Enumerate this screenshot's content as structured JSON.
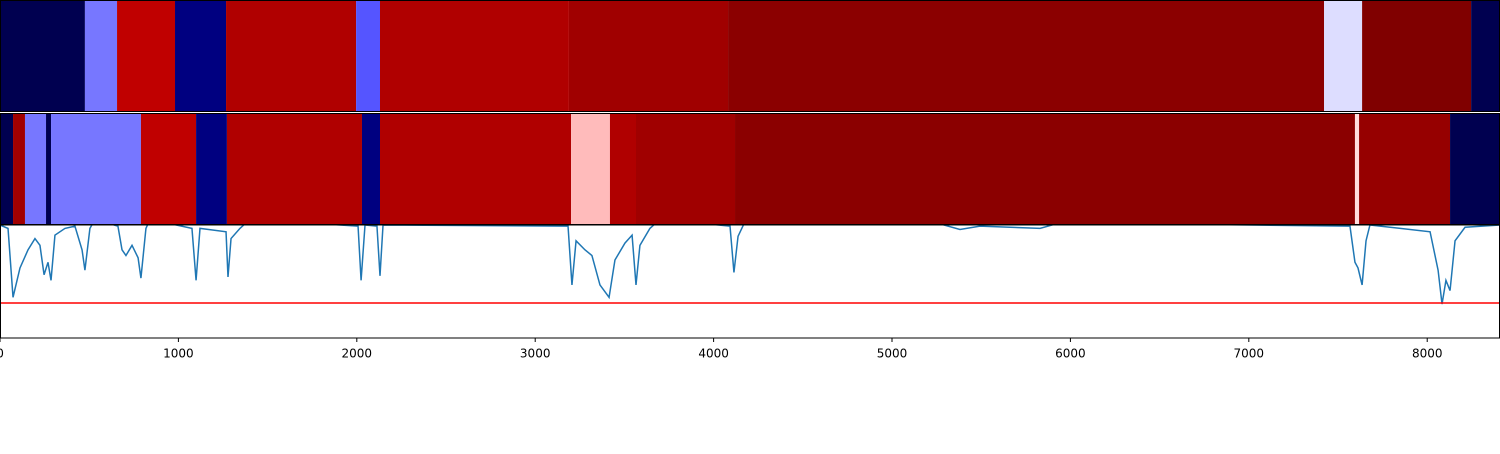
{
  "chart_data": {
    "type": "segments_line",
    "xlim": [
      0,
      8408
    ],
    "xticks": [
      0,
      1000,
      2000,
      3000,
      4000,
      5000,
      6000,
      7000,
      8000
    ],
    "strips": [
      {
        "edges": [
          0,
          476,
          656,
          981,
          1267,
          1996,
          2130,
          3189,
          4081,
          7422,
          7635,
          8246,
          8408
        ],
        "colors": [
          "#000050",
          "#7777ff",
          "#c00000",
          "#000080",
          "#b00000",
          "#5555ff",
          "#b00000",
          "#a00000",
          "#8b0000",
          "#ddddff",
          "#800000",
          "#000050"
        ]
      },
      {
        "edges": [
          0,
          73,
          140,
          258,
          286,
          790,
          1099,
          1272,
          2029,
          2130,
          3201,
          3419,
          3565,
          4120,
          7595,
          7618,
          8128,
          8408
        ],
        "colors": [
          "#000050",
          "#a00000",
          "#7777ff",
          "#000050",
          "#7777ff",
          "#c00000",
          "#000080",
          "#b00000",
          "#000080",
          "#b00000",
          "#ffbbbb",
          "#b00000",
          "#a00000",
          "#8b0000",
          "#ffdddd",
          "#960000",
          "#000050"
        ]
      }
    ],
    "line": {
      "color": "#1f77b4",
      "x": [
        0,
        45,
        73,
        112,
        157,
        196,
        224,
        247,
        269,
        286,
        308,
        364,
        420,
        460,
        476,
        504,
        533,
        661,
        684,
        706,
        740,
        774,
        790,
        818,
        841,
        1076,
        1099,
        1121,
        1267,
        1278,
        1295,
        1345,
        1401,
        2007,
        2024,
        2046,
        2113,
        2130,
        2147,
        3184,
        3206,
        3229,
        3279,
        3318,
        3363,
        3414,
        3447,
        3503,
        3543,
        3565,
        3587,
        3643,
        3700,
        4092,
        4114,
        4137,
        4176,
        5269,
        5381,
        5493,
        5830,
        5942,
        7567,
        7595,
        7612,
        7635,
        7657,
        7679,
        8016,
        8061,
        8083,
        8105,
        8128,
        8156,
        8212,
        8408
      ],
      "values": [
        1.0,
        0.97,
        0.36,
        0.62,
        0.78,
        0.88,
        0.82,
        0.56,
        0.67,
        0.51,
        0.91,
        0.97,
        0.99,
        0.78,
        0.6,
        0.97,
        1.05,
        0.99,
        0.78,
        0.73,
        0.82,
        0.71,
        0.53,
        0.97,
        1.05,
        0.97,
        0.51,
        0.97,
        0.94,
        0.54,
        0.88,
        0.97,
        1.05,
        0.99,
        0.51,
        1.0,
        0.99,
        0.55,
        1.0,
        0.99,
        0.47,
        0.86,
        0.78,
        0.73,
        0.47,
        0.36,
        0.69,
        0.84,
        0.91,
        0.47,
        0.82,
        0.97,
        1.05,
        0.99,
        0.58,
        0.9,
        1.03,
        1.01,
        0.96,
        0.99,
        0.97,
        1.02,
        0.99,
        0.67,
        0.62,
        0.47,
        0.86,
        1.0,
        0.94,
        0.6,
        0.3,
        0.51,
        0.42,
        0.86,
        0.98,
        1.0
      ]
    },
    "ylim": [
      0,
      1
    ],
    "threshold": {
      "value": 0.31,
      "color": "#ff0000"
    }
  }
}
